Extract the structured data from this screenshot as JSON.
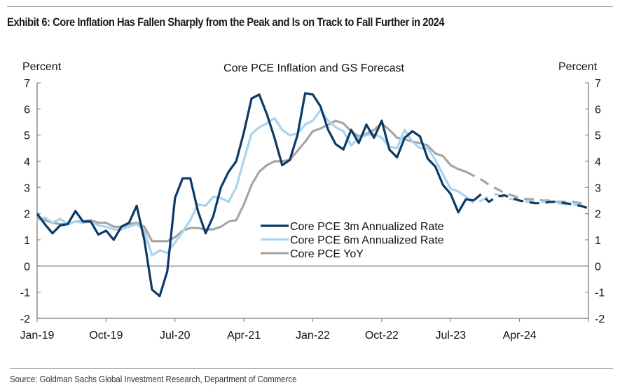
{
  "exhibit": {
    "title": "Exhibit 6: Core Inflation Has Fallen Sharply from the Peak and Is on Track to Fall Further in 2024",
    "source": "Source: Goldman Sachs Global Investment Research, Department of Commerce"
  },
  "chart_data": {
    "type": "line",
    "title": "Core PCE Inflation and GS Forecast",
    "ylabel_left": "Percent",
    "ylabel_right": "Percent",
    "xlabel": "",
    "ylim": [
      -2,
      7
    ],
    "yticks": [
      "7",
      "6",
      "5",
      "4",
      "3",
      "2",
      "1",
      "0",
      "-1",
      "-2"
    ],
    "ytick_values": [
      7,
      6,
      5,
      4,
      3,
      2,
      1,
      0,
      -1,
      -2
    ],
    "x_start": "Jan-19",
    "x_end": "Jan-25",
    "x_unit": "month index from Jan-19",
    "xticks": [
      "Jan-19",
      "Oct-19",
      "Jul-20",
      "Apr-21",
      "Jan-22",
      "Oct-22",
      "Jul-23",
      "Apr-24"
    ],
    "xtick_months": [
      0,
      9,
      18,
      27,
      36,
      45,
      54,
      63
    ],
    "x_max_month": 72,
    "grid": false,
    "zero_line": true,
    "legend_position": "center-right",
    "series": [
      {
        "name": "Core PCE 3m Annualized Rate",
        "color": "#0b3a66",
        "actual_start_month": 0,
        "actual": [
          2.0,
          1.6,
          1.25,
          1.55,
          1.6,
          2.1,
          1.7,
          1.7,
          1.2,
          1.35,
          1.0,
          1.5,
          1.65,
          2.3,
          1.0,
          -0.9,
          -1.15,
          -0.2,
          2.6,
          3.35,
          3.35,
          2.1,
          1.25,
          1.9,
          3.0,
          3.6,
          4.0,
          5.1,
          6.4,
          6.55,
          5.8,
          4.9,
          3.85,
          4.05,
          5.0,
          6.6,
          6.55,
          6.1,
          5.2,
          4.65,
          4.45,
          5.2,
          4.7,
          5.4,
          4.9,
          5.55,
          4.45,
          4.15,
          4.9,
          5.15,
          4.95,
          4.1,
          3.8,
          3.1,
          2.75,
          2.05,
          2.55,
          2.5
        ],
        "forecast_start_month": 57,
        "forecast": [
          2.5,
          2.75,
          2.45,
          2.65,
          2.7,
          2.6,
          2.5,
          2.45,
          2.4,
          2.4,
          2.45,
          2.45,
          2.4,
          2.35,
          2.3,
          2.2
        ]
      },
      {
        "name": "Core PCE 6m Annualized Rate",
        "color": "#a9d3ef",
        "actual_start_month": 0,
        "actual": [
          1.75,
          1.85,
          1.65,
          1.8,
          1.6,
          1.7,
          1.65,
          1.7,
          1.55,
          1.5,
          1.4,
          1.4,
          1.5,
          1.6,
          1.35,
          0.4,
          0.6,
          0.5,
          0.9,
          1.3,
          1.75,
          2.35,
          2.3,
          2.65,
          2.6,
          2.45,
          3.0,
          4.05,
          5.05,
          5.3,
          5.45,
          5.65,
          5.2,
          5.0,
          5.05,
          5.4,
          5.55,
          5.95,
          5.55,
          5.3,
          5.15,
          4.6,
          4.9,
          5.0,
          5.05,
          4.9,
          4.55,
          4.5,
          5.2,
          4.75,
          4.5,
          4.5,
          4.05,
          3.5,
          2.95,
          2.85,
          2.65
        ],
        "forecast_start_month": 56,
        "forecast": [
          2.65,
          2.4,
          2.5,
          2.65,
          2.75,
          2.6,
          2.55,
          2.5,
          2.45,
          2.45,
          2.45,
          2.45,
          2.4,
          2.35,
          2.35,
          2.3,
          2.3
        ]
      },
      {
        "name": "Core PCE YoY",
        "color": "#a6a6a6",
        "actual_start_month": 0,
        "actual": [
          1.85,
          1.75,
          1.65,
          1.6,
          1.6,
          1.7,
          1.7,
          1.75,
          1.65,
          1.65,
          1.5,
          1.5,
          1.6,
          1.65,
          1.5,
          0.95,
          0.95,
          0.95,
          1.1,
          1.35,
          1.45,
          1.45,
          1.4,
          1.4,
          1.5,
          1.7,
          1.75,
          2.35,
          3.1,
          3.6,
          3.85,
          4.0,
          4.0,
          4.05,
          4.4,
          4.75,
          5.15,
          5.25,
          5.4,
          5.55,
          5.45,
          5.15,
          4.95,
          5.05,
          5.2,
          5.45,
          5.2,
          4.9,
          4.85,
          4.75,
          4.7,
          4.6,
          4.3,
          4.2,
          3.85,
          3.7,
          3.6
        ],
        "forecast_start_month": 56,
        "forecast": [
          3.6,
          3.45,
          3.3,
          3.1,
          2.95,
          2.8,
          2.7,
          2.6,
          2.55,
          2.55,
          2.5,
          2.5,
          2.45,
          2.45,
          2.45,
          2.4,
          2.4
        ]
      }
    ]
  }
}
